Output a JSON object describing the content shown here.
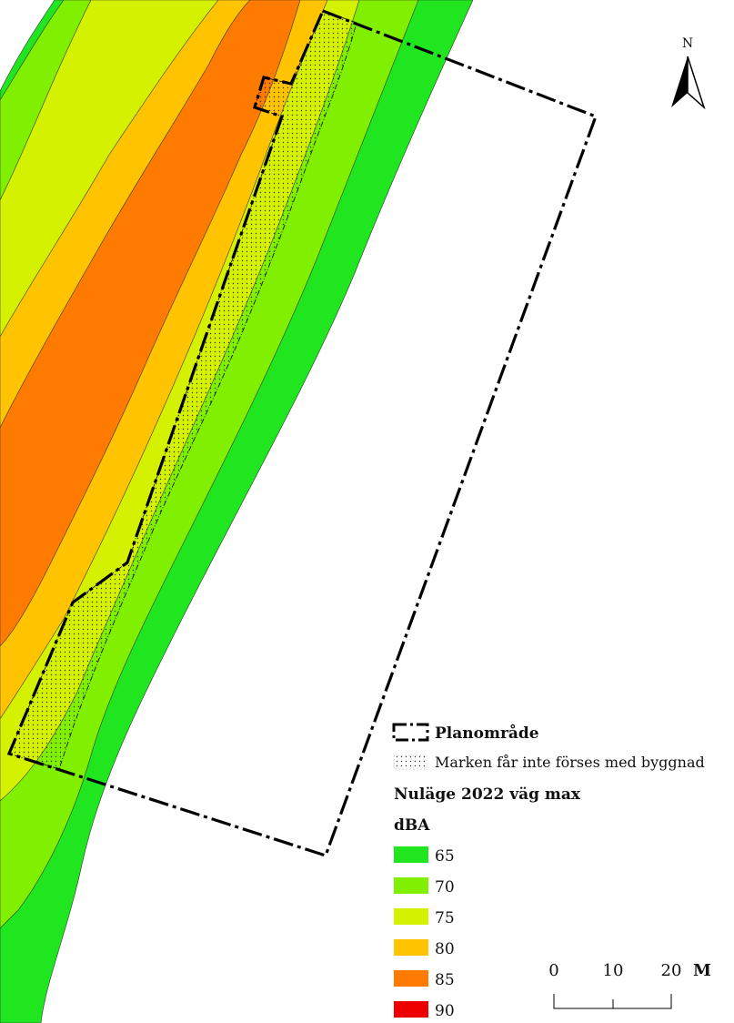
{
  "north_arrow": {
    "label": "N"
  },
  "legend": {
    "plan_area_label": "Planområde",
    "no_build_label": "Marken får inte förses med byggnad",
    "title": "Nuläge 2022 väg max",
    "unit": "dBA",
    "classes": [
      {
        "label": "65",
        "color": "#1fe61f"
      },
      {
        "label": "70",
        "color": "#80f000"
      },
      {
        "label": "75",
        "color": "#d4f200"
      },
      {
        "label": "80",
        "color": "#ffc300"
      },
      {
        "label": "85",
        "color": "#ff7b00"
      },
      {
        "label": "90",
        "color": "#ee0000"
      }
    ]
  },
  "scale_bar": {
    "ticks": [
      "0",
      "10",
      "20"
    ],
    "unit": "M"
  },
  "colors": {
    "band_65": "#1fe61f",
    "band_70": "#80f000",
    "band_75": "#d4f200",
    "band_80": "#ffc300",
    "band_85": "#ff7b00",
    "band_90": "#ee0000",
    "outline": "#000000"
  }
}
